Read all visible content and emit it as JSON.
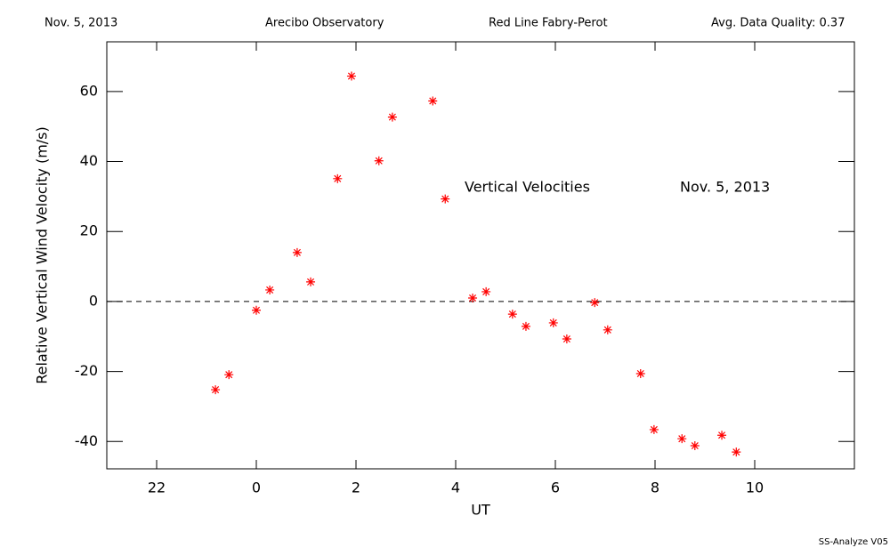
{
  "chart_data": {
    "type": "scatter",
    "header": [
      "Nov. 5, 2013",
      "Arecibo Observatory",
      "Red Line Fabry-Perot",
      "Avg. Data Quality: 0.37"
    ],
    "annotations": [
      "Vertical Velocities",
      "Nov. 5, 2013"
    ],
    "footer": "SS-Analyze V05",
    "xlabel": "UT",
    "ylabel": "Relative Vertical Wind Velocity (m/s)",
    "xlim": [
      -3,
      12
    ],
    "xticks": [
      {
        "value": -2,
        "label": "22"
      },
      0,
      2,
      4,
      6,
      8,
      10
    ],
    "ylim": [
      -47.8,
      74.2
    ],
    "yticks": [
      -40,
      -20,
      0,
      20,
      40,
      60
    ],
    "hline": 0,
    "color": "#ff0000",
    "x": [
      -0.82,
      -0.55,
      0,
      0.27,
      0.82,
      1.09,
      1.63,
      1.91,
      2.46,
      2.73,
      3.54,
      3.79,
      4.34,
      4.61,
      5.14,
      5.41,
      5.96,
      6.23,
      6.79,
      7.05,
      7.71,
      7.98,
      8.54,
      8.8,
      9.34,
      9.63
    ],
    "values": [
      -25.2,
      -20.9,
      -2.5,
      3.3,
      14.0,
      5.6,
      35.1,
      64.4,
      40.2,
      52.7,
      57.3,
      29.3,
      1.0,
      2.8,
      -3.6,
      -7.1,
      -6.1,
      -10.7,
      -0.3,
      -8.1,
      -20.6,
      -36.6,
      -39.2,
      -41.2,
      -38.2,
      -43.0
    ]
  }
}
